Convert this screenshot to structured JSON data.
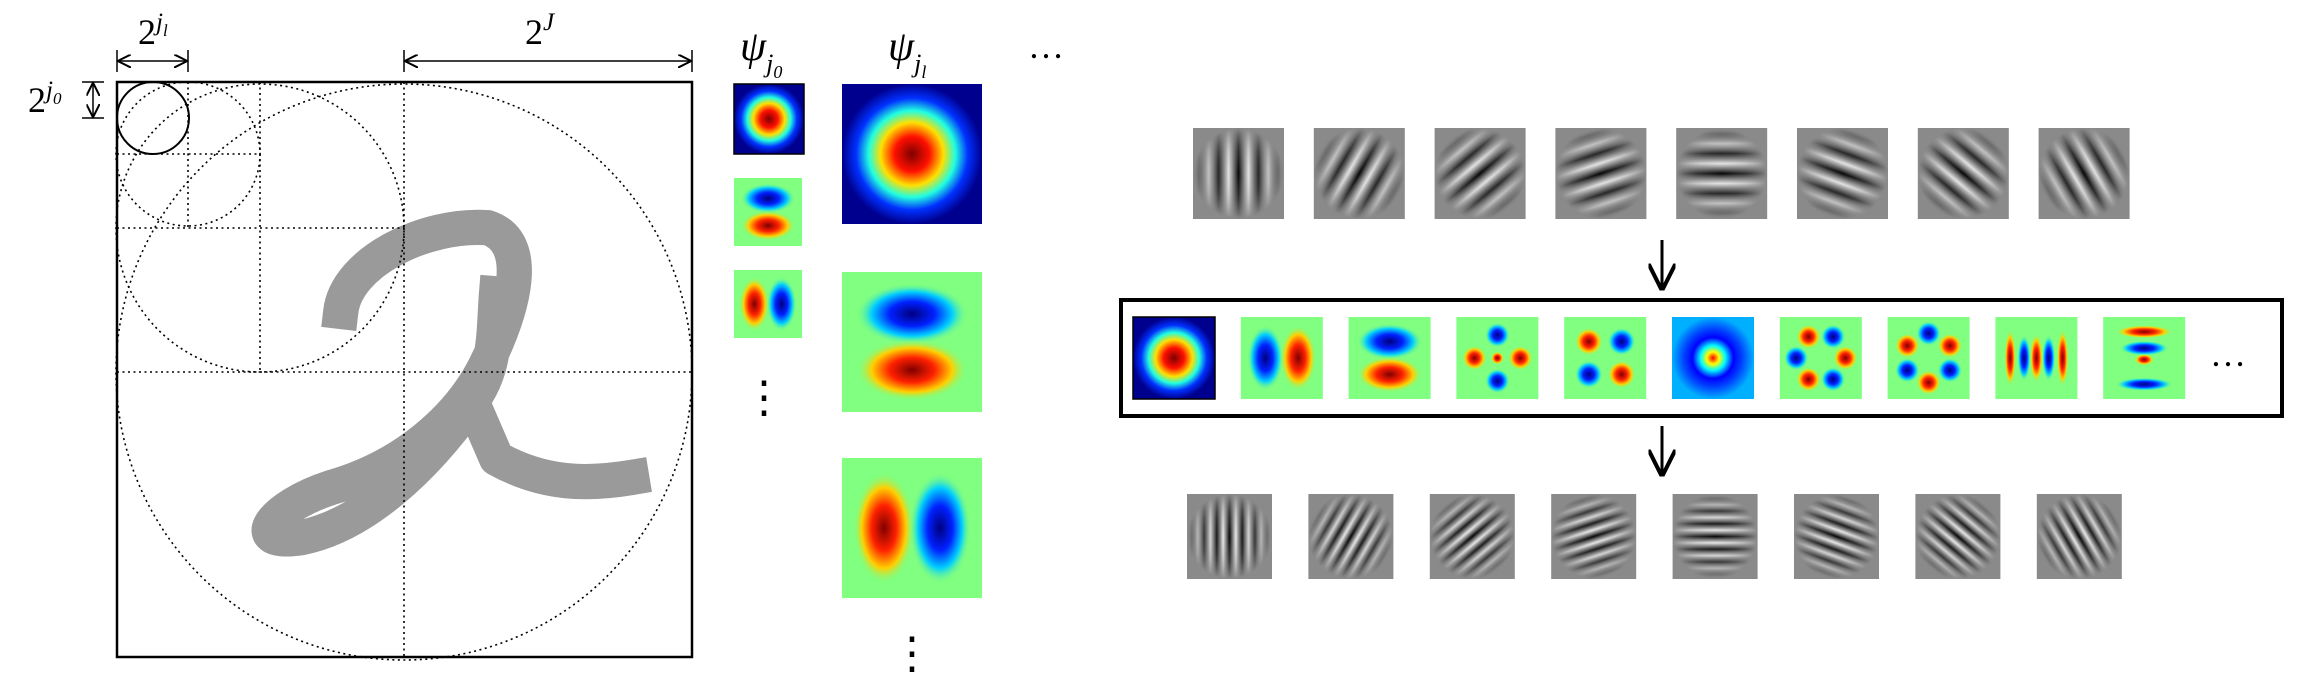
{
  "annotations": {
    "width_jl": {
      "base": "2",
      "sup": "j",
      "sub": "l"
    },
    "width_J": {
      "base": "2",
      "sup": "J"
    },
    "width_j0": {
      "base": "2",
      "sup": "j",
      "sub": "0"
    }
  },
  "columns": {
    "psi_j0": {
      "symbol": "ψ",
      "sub": "j",
      "subsub": "0",
      "more": "⋮"
    },
    "psi_jl": {
      "symbol": "ψ",
      "sub": "j",
      "subsub": "l",
      "more": "⋮"
    },
    "more_columns": "…"
  },
  "filter_bank_more": "…"
}
